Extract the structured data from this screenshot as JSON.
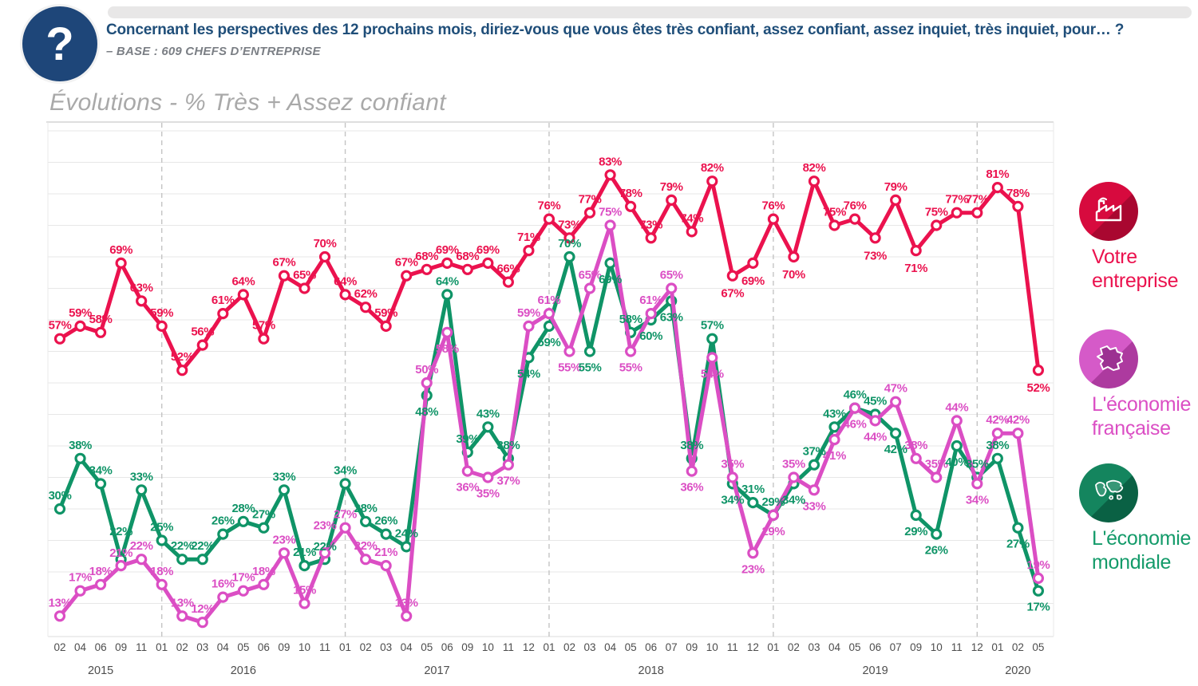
{
  "header": {
    "icon_glyph": "?",
    "question": "Concernant les perspectives des 12 prochains mois, diriez-vous que vous êtes très confiant, assez confiant, assez inquiet, très inquiet, pour… ?",
    "base": "– BASE : 609 CHEFS D’ENTREPRISE"
  },
  "title": "Évolutions - % Très + Assez confiant",
  "chart_data": {
    "type": "line",
    "unit": "%",
    "ylim": [
      8,
      92
    ],
    "gridlines_every": 5,
    "grid": true,
    "legend_position": "right",
    "months": [
      "02",
      "04",
      "06",
      "09",
      "11",
      "01",
      "02",
      "03",
      "04",
      "05",
      "06",
      "09",
      "10",
      "11",
      "01",
      "02",
      "03",
      "04",
      "05",
      "06",
      "09",
      "10",
      "11",
      "12",
      "01",
      "02",
      "03",
      "04",
      "05",
      "06",
      "07",
      "09",
      "10",
      "11",
      "12",
      "01",
      "02",
      "03",
      "04",
      "05",
      "06",
      "07",
      "09",
      "10",
      "11",
      "12",
      "01",
      "02",
      "05"
    ],
    "year_groups": [
      {
        "label": "2015",
        "count": 5
      },
      {
        "label": "2016",
        "count": 9
      },
      {
        "label": "2017",
        "count": 10
      },
      {
        "label": "2018",
        "count": 11
      },
      {
        "label": "2019",
        "count": 11
      },
      {
        "label": "2020",
        "count": 3
      }
    ],
    "series": [
      {
        "name": "Votre entreprise",
        "color": "#EB124E",
        "values": [
          57,
          59,
          58,
          69,
          63,
          59,
          52,
          56,
          61,
          64,
          57,
          67,
          65,
          70,
          64,
          62,
          59,
          67,
          68,
          69,
          68,
          69,
          66,
          71,
          76,
          73,
          77,
          83,
          78,
          73,
          79,
          74,
          82,
          67,
          69,
          76,
          70,
          82,
          75,
          76,
          73,
          79,
          71,
          75,
          77,
          77,
          81,
          78,
          52
        ]
      },
      {
        "name": "L'économie française",
        "color": "#DB4EC4",
        "values": [
          13,
          17,
          18,
          21,
          22,
          18,
          13,
          12,
          16,
          17,
          18,
          23,
          15,
          23,
          27,
          22,
          21,
          13,
          50,
          58,
          36,
          35,
          37,
          59,
          61,
          55,
          65,
          75,
          55,
          61,
          65,
          36,
          54,
          35,
          23,
          29,
          35,
          33,
          41,
          46,
          44,
          47,
          38,
          35,
          44,
          34,
          42,
          42,
          19
        ]
      },
      {
        "name": "L'économie mondiale",
        "color": "#0F9467",
        "values": [
          30,
          38,
          34,
          22,
          33,
          25,
          22,
          22,
          26,
          28,
          27,
          33,
          21,
          22,
          34,
          28,
          26,
          24,
          48,
          64,
          39,
          43,
          38,
          54,
          59,
          70,
          55,
          69,
          58,
          60,
          63,
          38,
          57,
          34,
          31,
          29,
          34,
          37,
          43,
          46,
          45,
          42,
          29,
          26,
          40,
          35,
          38,
          27,
          17
        ]
      }
    ]
  },
  "legend": [
    {
      "label_lines": [
        "Votre",
        "entreprise"
      ],
      "icon": "factory-icon",
      "text_color": "#EB124E",
      "circle_color": "#D70A3E",
      "circle_shadow": "#A90730"
    },
    {
      "label_lines": [
        "L'économie",
        "française"
      ],
      "icon": "france-map-icon",
      "text_color": "#DB4EC4",
      "circle_color": "#D55AC8",
      "circle_shadow": "#AD3A9F"
    },
    {
      "label_lines": [
        "L'économie",
        "mondiale"
      ],
      "icon": "world-map-icon",
      "text_color": "#149B6A",
      "circle_color": "#14855E",
      "circle_shadow": "#0A6144"
    }
  ]
}
